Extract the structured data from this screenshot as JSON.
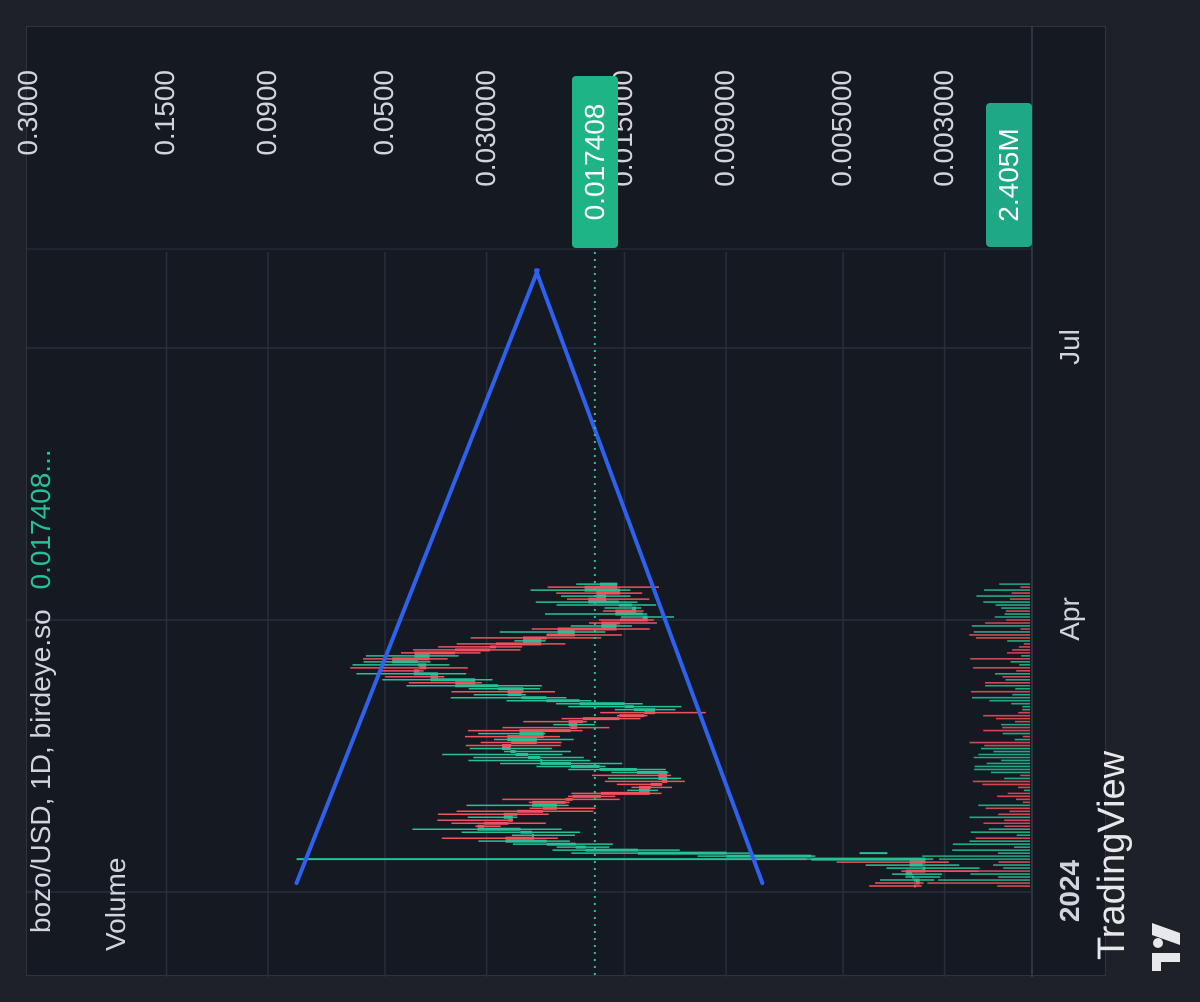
{
  "chart_data": {
    "type": "candlestick",
    "orientation": "rotated-90-counterclockwise",
    "symbol_line": "bozo/USD, 1D, birdeye.so",
    "last_value_text": "0.017408...",
    "indicator_label": "Volume",
    "price_axis": {
      "scale": "log",
      "tick_labels": [
        "0.3000",
        "0.1500",
        "0.0900",
        "0.0500",
        "0.030000",
        "0.015000",
        "0.009000",
        "0.005000",
        "0.003000"
      ],
      "tick_values": [
        0.3,
        0.15,
        0.09,
        0.05,
        0.03,
        0.015,
        0.009,
        0.005,
        0.003
      ]
    },
    "time_axis": {
      "tick_labels": [
        "2024",
        "Apr",
        "Jul"
      ],
      "year_label": "2024"
    },
    "last_price": 0.017408,
    "last_price_label": "0.017408",
    "last_volume_label": "2.405M",
    "watermark": "TradingView",
    "colors": {
      "up": "#26c196",
      "down": "#f0525e",
      "trendline": "#2d62f0",
      "price_badge": "#1fb486",
      "volume_badge": "#1ea885",
      "background": "#151922",
      "frame": "#1e2128"
    },
    "trendlines": [
      {
        "from": {
          "date": "2024-01-04",
          "price": 0.078
        },
        "to": {
          "date": "2024-07-27",
          "price": 0.0232
        }
      },
      {
        "from": {
          "date": "2024-01-04",
          "price": 0.0075
        },
        "to": {
          "date": "2024-07-27",
          "price": 0.0234
        }
      }
    ]
  }
}
